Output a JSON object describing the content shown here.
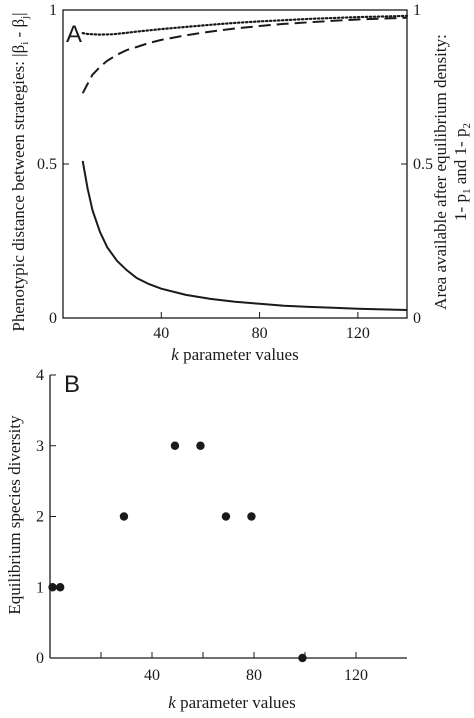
{
  "chart_data": [
    {
      "panel": "A",
      "type": "line",
      "xlabel_italic": "k",
      "xlabel_rest": " parameter values",
      "ylabel_left": "Phenotypic distance between strategies: |β",
      "ylabel_left_sub1": "i",
      "ylabel_left_mid": " - β",
      "ylabel_left_sub2": "j",
      "ylabel_left_end": "|",
      "ylabel_right_line1": "Area available after equilibrium density:",
      "ylabel_right_line2a": "1- p",
      "ylabel_right_sub1": "1",
      "ylabel_right_line2b": " and  1- p",
      "ylabel_right_sub2": "2",
      "xlim": [
        0,
        140
      ],
      "ylim": [
        0,
        1
      ],
      "x_ticks": [
        40,
        80,
        120
      ],
      "y_ticks_left": [
        "0",
        "0.5",
        "1"
      ],
      "y_ticks_right": [
        "0",
        "0.5",
        "1"
      ],
      "series": [
        {
          "style": "solid",
          "x": [
            8,
            10,
            12,
            15,
            18,
            22,
            26,
            30,
            35,
            40,
            50,
            60,
            70,
            80,
            90,
            100,
            110,
            120,
            130,
            140
          ],
          "y": [
            0.51,
            0.42,
            0.35,
            0.28,
            0.23,
            0.185,
            0.155,
            0.13,
            0.11,
            0.095,
            0.075,
            0.062,
            0.053,
            0.046,
            0.04,
            0.036,
            0.033,
            0.03,
            0.028,
            0.026
          ]
        },
        {
          "style": "dashed",
          "x": [
            8,
            10,
            12,
            15,
            18,
            22,
            26,
            30,
            35,
            40,
            50,
            60,
            70,
            80,
            90,
            100,
            110,
            120,
            130,
            140
          ],
          "y": [
            0.73,
            0.76,
            0.79,
            0.815,
            0.835,
            0.855,
            0.87,
            0.88,
            0.893,
            0.903,
            0.918,
            0.93,
            0.94,
            0.948,
            0.955,
            0.96,
            0.965,
            0.969,
            0.972,
            0.975
          ]
        },
        {
          "style": "dotted",
          "x": [
            8,
            10,
            15,
            20,
            25,
            30,
            40,
            50,
            60,
            70,
            80,
            90,
            100,
            110,
            120,
            130,
            140
          ],
          "y": [
            0.925,
            0.922,
            0.92,
            0.921,
            0.925,
            0.93,
            0.938,
            0.945,
            0.952,
            0.958,
            0.963,
            0.967,
            0.971,
            0.974,
            0.977,
            0.979,
            0.981
          ]
        }
      ]
    },
    {
      "panel": "B",
      "type": "scatter",
      "xlabel_italic": "k",
      "xlabel_rest": " parameter values",
      "ylabel": "Equilibrium species diversity",
      "xlim": [
        0,
        140
      ],
      "ylim": [
        0,
        4
      ],
      "x_ticks": [
        40,
        80,
        120
      ],
      "y_ticks": [
        0,
        1,
        2,
        3,
        4
      ],
      "points": [
        {
          "x": 1,
          "y": 1
        },
        {
          "x": 4,
          "y": 1
        },
        {
          "x": 29,
          "y": 2
        },
        {
          "x": 49,
          "y": 3
        },
        {
          "x": 59,
          "y": 3
        },
        {
          "x": 69,
          "y": 2
        },
        {
          "x": 79,
          "y": 2
        },
        {
          "x": 99,
          "y": 0
        }
      ]
    }
  ]
}
